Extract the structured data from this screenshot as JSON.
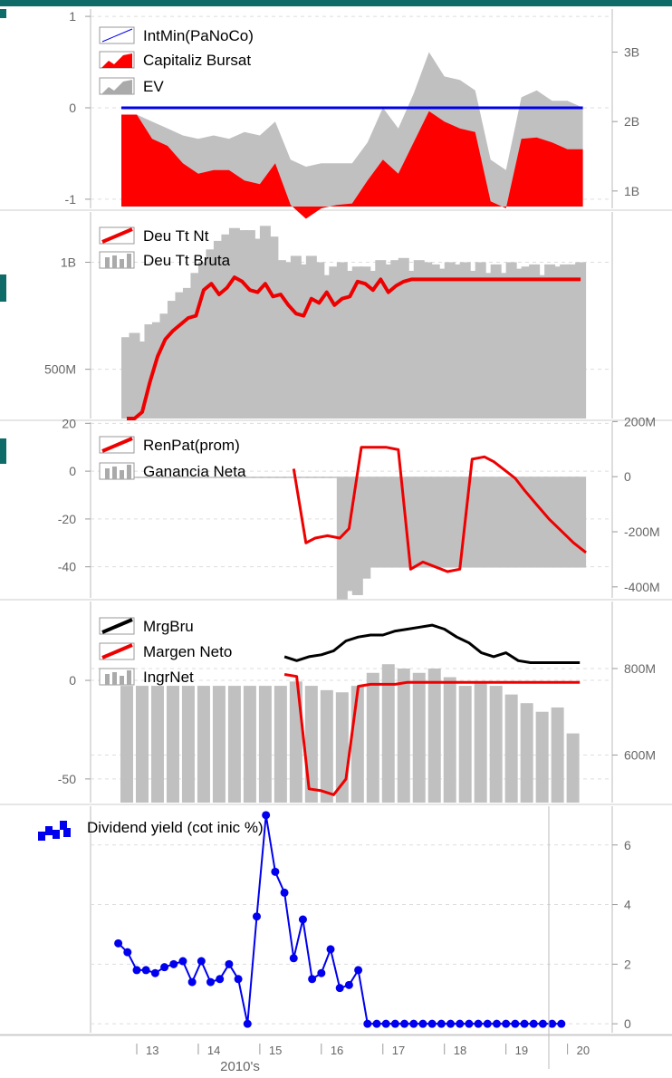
{
  "colors": {
    "header": "#0e6b67",
    "cap_red": "#ff0000",
    "ev_gray": "#c0c0c0",
    "bar_gray": "#c0c0c0",
    "blue": "#0000ee",
    "line_red": "#ee0000",
    "black": "#000000",
    "axis_text": "#666666"
  },
  "x_axis": {
    "years": [
      {
        "label": "13",
        "x": 2013
      },
      {
        "label": "14",
        "x": 2014
      },
      {
        "label": "15",
        "x": 2015
      },
      {
        "label": "16",
        "x": 2016
      },
      {
        "label": "17",
        "x": 2017
      },
      {
        "label": "18",
        "x": 2018
      },
      {
        "label": "19",
        "x": 2019
      },
      {
        "label": "20",
        "x": 2020
      }
    ],
    "decade_label": "2010's"
  },
  "chart_data": [
    {
      "type": "area",
      "x": [
        2012.75,
        2013.0,
        2013.25,
        2013.5,
        2013.75,
        2014.0,
        2014.25,
        2014.5,
        2014.75,
        2015.0,
        2015.25,
        2015.5,
        2015.75,
        2016.0,
        2016.25,
        2016.5,
        2016.75,
        2017.0,
        2017.25,
        2017.5,
        2017.75,
        2018.0,
        2018.25,
        2018.5,
        2018.75,
        2019.0,
        2019.25,
        2019.5,
        2019.75,
        2020.0,
        2020.25
      ],
      "left_axis": {
        "ticks": [
          {
            "v": 1,
            "label": "1"
          },
          {
            "v": 0,
            "label": "0"
          },
          {
            "v": -1,
            "label": "-1"
          }
        ]
      },
      "right_axis": {
        "ticks": [
          {
            "v": 3,
            "label": "3B"
          },
          {
            "v": 2,
            "label": "2B"
          },
          {
            "v": 1,
            "label": "1B"
          }
        ],
        "unit": "B"
      },
      "series": [
        {
          "name": "IntMin(PaNoCo)",
          "axis": "left",
          "style": "line",
          "values": [
            0,
            0,
            0,
            0,
            0,
            0,
            0,
            0,
            0,
            0,
            0,
            0,
            0,
            0,
            0,
            0,
            0,
            0,
            0,
            0,
            0,
            0,
            0,
            0,
            0,
            0,
            0,
            0,
            0,
            0,
            0
          ]
        },
        {
          "name": "Capitaliz Bursat",
          "axis": "right",
          "style": "area",
          "values": [
            2.1,
            2.1,
            1.75,
            1.65,
            1.4,
            1.25,
            1.3,
            1.3,
            1.15,
            1.1,
            1.4,
            0.8,
            0.6,
            0.75,
            0.8,
            0.82,
            1.15,
            1.45,
            1.25,
            1.7,
            2.15,
            2.0,
            1.9,
            1.85,
            0.85,
            0.75,
            1.75,
            1.77,
            1.7,
            1.6,
            1.6
          ]
        },
        {
          "name": "EV",
          "axis": "right",
          "style": "area",
          "values": [
            2.1,
            2.1,
            2.0,
            1.9,
            1.8,
            1.75,
            1.8,
            1.75,
            1.85,
            1.8,
            2.0,
            1.45,
            1.35,
            1.4,
            1.4,
            1.4,
            1.7,
            2.2,
            1.9,
            2.4,
            3.0,
            2.65,
            2.6,
            2.45,
            1.45,
            1.3,
            2.35,
            2.45,
            2.3,
            2.3,
            2.2
          ]
        }
      ]
    },
    {
      "type": "bar",
      "x": [
        2012.75,
        2012.875,
        2013.0,
        2013.125,
        2013.25,
        2013.375,
        2013.5,
        2013.625,
        2013.75,
        2013.875,
        2014.0,
        2014.125,
        2014.25,
        2014.375,
        2014.5,
        2014.625,
        2014.75,
        2014.875,
        2015.0,
        2015.125,
        2015.25,
        2015.375,
        2015.5,
        2015.625,
        2015.75,
        2015.875,
        2016.0,
        2016.125,
        2016.25,
        2016.375,
        2016.5,
        2016.625,
        2016.75,
        2016.875,
        2017.0,
        2017.125,
        2017.25,
        2017.375,
        2017.5,
        2017.625,
        2017.75,
        2017.875,
        2018.0,
        2018.125,
        2018.25,
        2018.375,
        2018.5,
        2018.625,
        2018.75,
        2018.875,
        2019.0,
        2019.125,
        2019.25,
        2019.375,
        2019.5,
        2019.625,
        2019.75,
        2019.875,
        2020.0,
        2020.125
      ],
      "left_axis": {
        "ticks": [
          {
            "v": 1000000000,
            "label": "1B"
          },
          {
            "v": 500000000,
            "label": "500M"
          }
        ]
      },
      "series": [
        {
          "name": "Deu Tt Bruta",
          "axis": "left",
          "style": "bar",
          "values": [
            650000000,
            670000000,
            630000000,
            710000000,
            720000000,
            760000000,
            820000000,
            860000000,
            880000000,
            950000000,
            1000000000,
            1060000000,
            1100000000,
            1130000000,
            1160000000,
            1150000000,
            1150000000,
            1110000000,
            1170000000,
            1120000000,
            1010000000,
            1000000000,
            1030000000,
            990000000,
            1030000000,
            1000000000,
            940000000,
            980000000,
            1000000000,
            960000000,
            980000000,
            980000000,
            960000000,
            1010000000,
            990000000,
            1010000000,
            1020000000,
            960000000,
            1010000000,
            1000000000,
            990000000,
            970000000,
            1000000000,
            990000000,
            1000000000,
            960000000,
            1000000000,
            950000000,
            990000000,
            950000000,
            1000000000,
            970000000,
            980000000,
            990000000,
            940000000,
            990000000,
            980000000,
            990000000,
            990000000,
            1000000000
          ]
        },
        {
          "name": "Deu Tt Nt",
          "axis": "left",
          "style": "line",
          "values": [
            270000000,
            270000000,
            300000000,
            440000000,
            560000000,
            640000000,
            680000000,
            710000000,
            740000000,
            750000000,
            870000000,
            900000000,
            850000000,
            880000000,
            930000000,
            910000000,
            870000000,
            860000000,
            900000000,
            840000000,
            850000000,
            800000000,
            760000000,
            750000000,
            830000000,
            810000000,
            860000000,
            800000000,
            830000000,
            840000000,
            910000000,
            900000000,
            870000000,
            920000000,
            860000000,
            890000000,
            910000000,
            920000000,
            920000000,
            920000000,
            920000000,
            920000000,
            920000000,
            920000000,
            920000000,
            920000000,
            920000000,
            920000000,
            920000000,
            920000000,
            920000000,
            920000000,
            920000000,
            920000000,
            920000000,
            920000000,
            920000000,
            920000000,
            920000000,
            920000000
          ]
        }
      ]
    },
    {
      "type": "bar",
      "left_axis": {
        "ticks": [
          {
            "v": 20,
            "label": "20"
          },
          {
            "v": 0,
            "label": "0"
          },
          {
            "v": -20,
            "label": "-20"
          },
          {
            "v": -40,
            "label": "-40"
          }
        ]
      },
      "right_axis": {
        "ticks": [
          {
            "v": 200,
            "label": "200M"
          },
          {
            "v": 0,
            "label": "0"
          },
          {
            "v": -200,
            "label": "-200M"
          },
          {
            "v": -400,
            "label": "-400M"
          }
        ],
        "unit": "M"
      },
      "series": [
        {
          "name": "Ganancia Neta",
          "axis": "right",
          "style": "bar",
          "x": [
            2012.75,
            2012.875,
            2013.0,
            2013.125,
            2013.25,
            2013.375,
            2013.5,
            2013.625,
            2013.75,
            2013.875,
            2014.0,
            2014.125,
            2014.25,
            2014.375,
            2014.5,
            2014.625,
            2014.75,
            2014.875,
            2015.0,
            2015.125,
            2015.25,
            2015.375,
            2015.5,
            2015.625,
            2015.75,
            2015.875,
            2016.0,
            2016.125,
            2016.25,
            2016.375,
            2016.5,
            2016.625,
            2016.75,
            2016.875,
            2017.0,
            2017.125,
            2017.25,
            2017.375,
            2017.5,
            2017.625,
            2017.75,
            2017.875,
            2018.0,
            2018.125,
            2018.25,
            2018.375,
            2018.5,
            2018.625,
            2018.75,
            2018.875,
            2019.0,
            2019.125,
            2019.25,
            2019.375,
            2019.5,
            2019.625,
            2019.75,
            2019.875,
            2020.0,
            2020.125
          ],
          "values": [
            -5,
            -5,
            -5,
            -5,
            -5,
            -5,
            -5,
            -5,
            -5,
            -5,
            -5,
            -5,
            -5,
            -5,
            -5,
            -5,
            -5,
            -5,
            -5,
            -5,
            -5,
            -5,
            -5,
            -5,
            -5,
            -5,
            -5,
            -5,
            -445,
            -415,
            -430,
            -370,
            -330,
            -330,
            -330,
            -330,
            -330,
            -330,
            -330,
            -330,
            -330,
            -330,
            -330,
            -330,
            -330,
            -330,
            -330,
            -330,
            -330,
            -330,
            -330,
            -330,
            -330,
            -330,
            -330,
            -330,
            -330,
            -330,
            -330,
            -330
          ]
        },
        {
          "name": "RenPat(prom)",
          "axis": "left",
          "style": "line",
          "x": [
            2015.55,
            2015.75,
            2015.9,
            2016.1,
            2016.3,
            2016.45,
            2016.65,
            2016.85,
            2017.05,
            2017.25,
            2017.45,
            2017.65,
            2017.85,
            2018.05,
            2018.25,
            2018.45,
            2018.65,
            2018.8,
            2019.0,
            2019.15,
            2019.3,
            2019.5,
            2019.7,
            2019.9,
            2020.1,
            2020.3
          ],
          "values": [
            1,
            -30,
            -28,
            -27,
            -28,
            -24,
            10,
            10,
            10,
            9,
            -41,
            -38,
            -40,
            -42,
            -41,
            5,
            6,
            4,
            0,
            -3,
            -8,
            -14,
            -20,
            -25,
            -30,
            -34
          ]
        }
      ]
    },
    {
      "type": "bar",
      "left_axis": {
        "ticks": [
          {
            "v": 0,
            "label": "0"
          },
          {
            "v": -50,
            "label": "-50"
          }
        ]
      },
      "right_axis": {
        "ticks": [
          {
            "v": 800,
            "label": "800M"
          },
          {
            "v": 600,
            "label": "600M"
          }
        ],
        "unit": "M"
      },
      "series": [
        {
          "name": "IngrNet",
          "axis": "right",
          "style": "bar",
          "x": [
            2012.75,
            2013.0,
            2013.25,
            2013.5,
            2013.75,
            2014.0,
            2014.25,
            2014.5,
            2014.75,
            2015.0,
            2015.25,
            2015.5,
            2015.75,
            2016.0,
            2016.25,
            2016.5,
            2016.75,
            2017.0,
            2017.25,
            2017.5,
            2017.75,
            2018.0,
            2018.25,
            2018.5,
            2018.75,
            2019.0,
            2019.25,
            2019.5,
            2019.75,
            2020.0,
            2020.25
          ],
          "values": [
            760,
            760,
            760,
            760,
            760,
            760,
            760,
            760,
            760,
            760,
            760,
            770,
            760,
            750,
            745,
            760,
            790,
            810,
            800,
            790,
            800,
            780,
            760,
            770,
            760,
            740,
            720,
            700,
            710,
            650,
            480
          ]
        },
        {
          "name": "MrgBru",
          "axis": "left",
          "style": "line",
          "x": [
            2015.4,
            2015.6,
            2015.8,
            2016.0,
            2016.2,
            2016.4,
            2016.6,
            2016.8,
            2017.0,
            2017.2,
            2017.4,
            2017.6,
            2017.8,
            2018.0,
            2018.2,
            2018.4,
            2018.6,
            2018.8,
            2019.0,
            2019.2,
            2019.4,
            2019.6,
            2019.8,
            2020.0,
            2020.2
          ],
          "values": [
            12,
            10,
            12,
            13,
            15,
            20,
            22,
            23,
            23,
            25,
            26,
            27,
            28,
            26,
            22,
            19,
            14,
            12,
            14,
            10,
            9,
            9,
            9,
            9,
            9
          ]
        },
        {
          "name": "Margen Neto",
          "axis": "left",
          "style": "line",
          "x": [
            2015.4,
            2015.6,
            2015.8,
            2016.0,
            2016.2,
            2016.4,
            2016.6,
            2016.8,
            2017.0,
            2017.2,
            2017.4,
            2017.6,
            2017.8,
            2018.0,
            2018.2,
            2018.4,
            2018.6,
            2018.8,
            2019.0,
            2019.2,
            2019.4,
            2019.6,
            2019.8,
            2020.0,
            2020.2
          ],
          "values": [
            3,
            2,
            -55,
            -56,
            -58,
            -50,
            -3,
            -2,
            -2,
            -2,
            -1,
            -1,
            -1,
            -1,
            -1,
            -1,
            -1,
            -1,
            -1,
            -1,
            -1,
            -1,
            -1,
            -1,
            -1
          ]
        }
      ]
    },
    {
      "type": "line",
      "x": [
        2012.7,
        2012.85,
        2013.0,
        2013.15,
        2013.3,
        2013.45,
        2013.6,
        2013.75,
        2013.9,
        2014.05,
        2014.2,
        2014.35,
        2014.5,
        2014.65,
        2014.8,
        2014.95,
        2015.1,
        2015.25,
        2015.4,
        2015.55,
        2015.7,
        2015.85,
        2016.0,
        2016.15,
        2016.3,
        2016.45,
        2016.6,
        2016.75,
        2016.9,
        2017.05,
        2017.2,
        2017.35,
        2017.5,
        2017.65,
        2017.8,
        2017.95,
        2018.1,
        2018.25,
        2018.4,
        2018.55,
        2018.7,
        2018.85,
        2019.0,
        2019.15,
        2019.3,
        2019.45,
        2019.6,
        2019.75,
        2019.9
      ],
      "right_axis": {
        "ticks": [
          {
            "v": 6,
            "label": "6"
          },
          {
            "v": 4,
            "label": "4"
          },
          {
            "v": 2,
            "label": "2"
          },
          {
            "v": 0,
            "label": "0"
          }
        ]
      },
      "series": [
        {
          "name": "Dividend yield (cot inic %)",
          "axis": "right",
          "style": "line+markers",
          "values": [
            2.7,
            2.4,
            1.8,
            1.8,
            1.7,
            1.9,
            2.0,
            2.1,
            1.4,
            2.1,
            1.4,
            1.5,
            2.0,
            1.5,
            0.0,
            3.6,
            7.0,
            5.1,
            4.4,
            2.2,
            3.5,
            1.5,
            1.7,
            2.5,
            1.2,
            1.3,
            1.8,
            0.0,
            0.0,
            0.0,
            0.0,
            0.0,
            0.0,
            0.0,
            0.0,
            0.0,
            0.0,
            0.0,
            0.0,
            0.0,
            0.0,
            0.0,
            0.0,
            0.0,
            0.0,
            0.0,
            0.0,
            0.0,
            0.0
          ]
        }
      ]
    }
  ]
}
